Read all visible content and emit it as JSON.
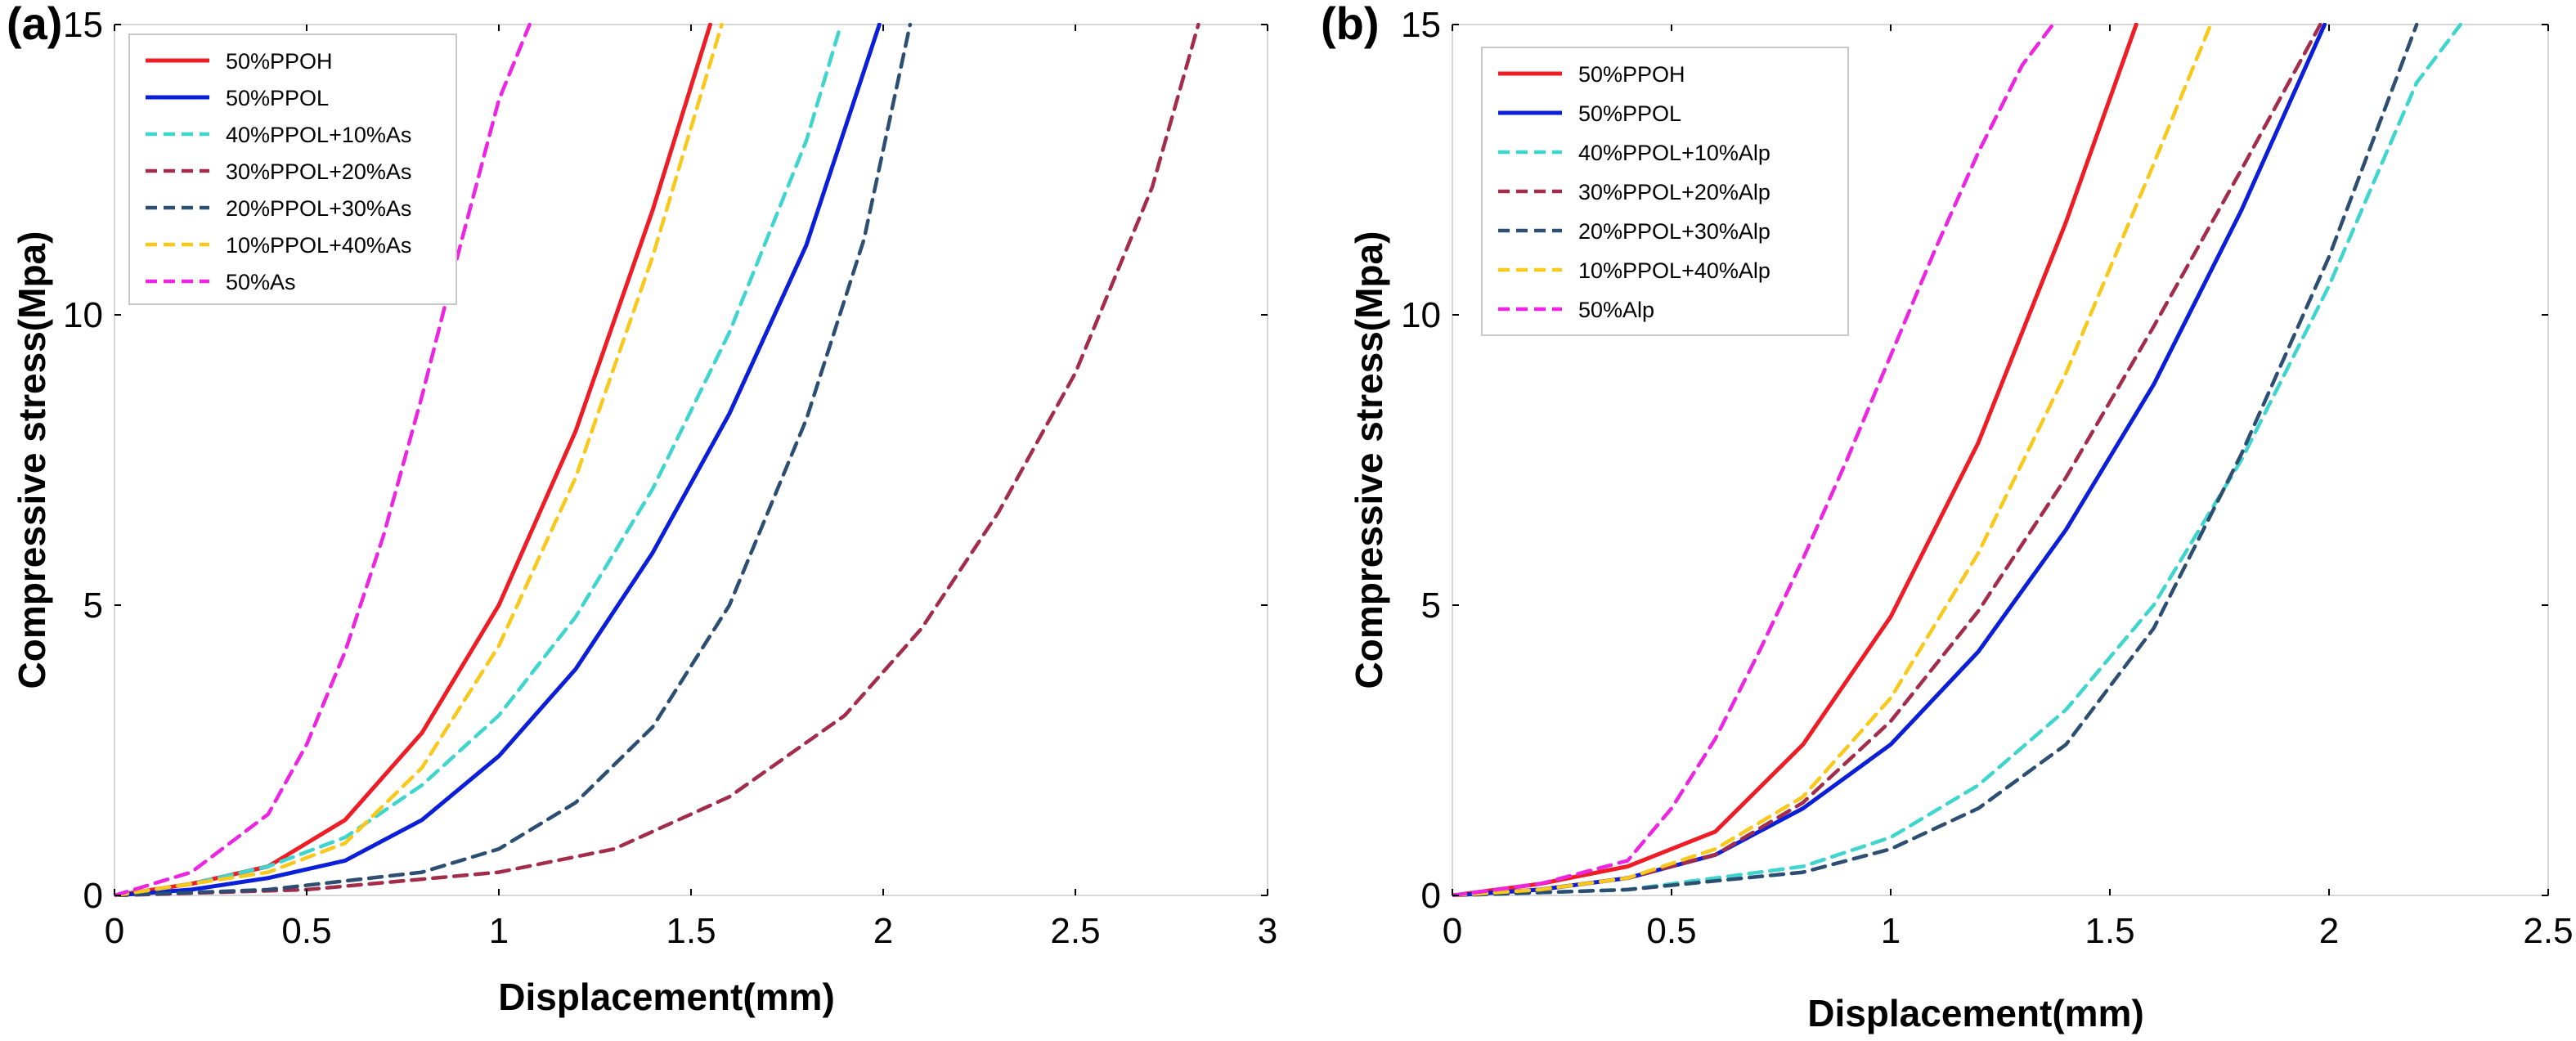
{
  "chart_data": [
    {
      "type": "line",
      "panel_label": "(a)",
      "xlabel": "Displacement(mm)",
      "ylabel": "Compressive stress(Mpa)",
      "xlim": [
        0,
        3
      ],
      "ylim": [
        0,
        15
      ],
      "xticks": [
        "0",
        "0.5",
        "1",
        "1.5",
        "2",
        "2.5",
        "3"
      ],
      "yticks": [
        "0",
        "5",
        "10",
        "15"
      ],
      "grid": false,
      "legend_position": "top-left",
      "series": [
        {
          "name": "50%PPOH",
          "color": "#ee1c25",
          "style": "solid",
          "points": [
            [
              0,
              0
            ],
            [
              0.2,
              0.2
            ],
            [
              0.4,
              0.5
            ],
            [
              0.6,
              1.3
            ],
            [
              0.8,
              2.8
            ],
            [
              1.0,
              5.0
            ],
            [
              1.2,
              8.0
            ],
            [
              1.4,
              11.8
            ],
            [
              1.55,
              15.0
            ]
          ]
        },
        {
          "name": "50%PPOL",
          "color": "#0b1ed8",
          "style": "solid",
          "points": [
            [
              0,
              0
            ],
            [
              0.2,
              0.1
            ],
            [
              0.4,
              0.3
            ],
            [
              0.6,
              0.6
            ],
            [
              0.8,
              1.3
            ],
            [
              1.0,
              2.4
            ],
            [
              1.2,
              3.9
            ],
            [
              1.4,
              5.9
            ],
            [
              1.6,
              8.3
            ],
            [
              1.8,
              11.2
            ],
            [
              1.99,
              15.0
            ]
          ]
        },
        {
          "name": "40%PPOL+10%As",
          "color": "#3fd5cf",
          "style": "dashed",
          "points": [
            [
              0,
              0
            ],
            [
              0.2,
              0.2
            ],
            [
              0.4,
              0.5
            ],
            [
              0.6,
              1.0
            ],
            [
              0.8,
              1.9
            ],
            [
              1.0,
              3.1
            ],
            [
              1.2,
              4.8
            ],
            [
              1.4,
              7.0
            ],
            [
              1.6,
              9.7
            ],
            [
              1.8,
              13.0
            ],
            [
              1.89,
              15.0
            ]
          ]
        },
        {
          "name": "30%PPOL+20%As",
          "color": "#a32c4a",
          "style": "dashed",
          "points": [
            [
              0,
              0
            ],
            [
              0.5,
              0.1
            ],
            [
              1.0,
              0.4
            ],
            [
              1.3,
              0.8
            ],
            [
              1.6,
              1.7
            ],
            [
              1.9,
              3.1
            ],
            [
              2.1,
              4.6
            ],
            [
              2.3,
              6.6
            ],
            [
              2.5,
              9.0
            ],
            [
              2.7,
              12.2
            ],
            [
              2.82,
              15.0
            ]
          ]
        },
        {
          "name": "20%PPOL+30%As",
          "color": "#2b4e72",
          "style": "dashed",
          "points": [
            [
              0,
              0
            ],
            [
              0.4,
              0.1
            ],
            [
              0.8,
              0.4
            ],
            [
              1.0,
              0.8
            ],
            [
              1.2,
              1.6
            ],
            [
              1.4,
              2.9
            ],
            [
              1.6,
              5.0
            ],
            [
              1.8,
              8.2
            ],
            [
              1.95,
              11.3
            ],
            [
              2.07,
              15.0
            ]
          ]
        },
        {
          "name": "10%PPOL+40%As",
          "color": "#f8c81b",
          "style": "dashed",
          "points": [
            [
              0,
              0
            ],
            [
              0.2,
              0.2
            ],
            [
              0.4,
              0.4
            ],
            [
              0.6,
              0.9
            ],
            [
              0.8,
              2.2
            ],
            [
              1.0,
              4.3
            ],
            [
              1.2,
              7.2
            ],
            [
              1.4,
              11.0
            ],
            [
              1.58,
              15.0
            ]
          ]
        },
        {
          "name": "50%As",
          "color": "#ee24e3",
          "style": "dashed",
          "points": [
            [
              0,
              0
            ],
            [
              0.2,
              0.4
            ],
            [
              0.4,
              1.4
            ],
            [
              0.5,
              2.6
            ],
            [
              0.6,
              4.2
            ],
            [
              0.7,
              6.2
            ],
            [
              0.8,
              8.6
            ],
            [
              0.9,
              11.2
            ],
            [
              1.0,
              13.7
            ],
            [
              1.08,
              15.0
            ]
          ]
        }
      ]
    },
    {
      "type": "line",
      "panel_label": "(b)",
      "xlabel": "Displacement(mm)",
      "ylabel": "Compressive stress(Mpa)",
      "xlim": [
        0,
        2.5
      ],
      "ylim": [
        0,
        15
      ],
      "xticks": [
        "0",
        "0.5",
        "1",
        "1.5",
        "2",
        "2.5"
      ],
      "yticks": [
        "0",
        "5",
        "10",
        "15"
      ],
      "grid": false,
      "legend_position": "top-left",
      "series": [
        {
          "name": "50%PPOH",
          "color": "#ee1c25",
          "style": "solid",
          "points": [
            [
              0,
              0
            ],
            [
              0.2,
              0.2
            ],
            [
              0.4,
              0.5
            ],
            [
              0.6,
              1.1
            ],
            [
              0.8,
              2.6
            ],
            [
              1.0,
              4.8
            ],
            [
              1.2,
              7.8
            ],
            [
              1.4,
              11.6
            ],
            [
              1.56,
              15.0
            ]
          ]
        },
        {
          "name": "50%PPOL",
          "color": "#0b1ed8",
          "style": "solid",
          "points": [
            [
              0,
              0
            ],
            [
              0.2,
              0.1
            ],
            [
              0.4,
              0.3
            ],
            [
              0.6,
              0.7
            ],
            [
              0.8,
              1.5
            ],
            [
              1.0,
              2.6
            ],
            [
              1.2,
              4.2
            ],
            [
              1.4,
              6.3
            ],
            [
              1.6,
              8.8
            ],
            [
              1.8,
              11.8
            ],
            [
              1.99,
              15.0
            ]
          ]
        },
        {
          "name": "40%PPOL+10%Alp",
          "color": "#3fd5cf",
          "style": "dashed",
          "points": [
            [
              0,
              0
            ],
            [
              0.4,
              0.1
            ],
            [
              0.8,
              0.5
            ],
            [
              1.0,
              1.0
            ],
            [
              1.2,
              1.9
            ],
            [
              1.4,
              3.2
            ],
            [
              1.6,
              5.0
            ],
            [
              1.8,
              7.5
            ],
            [
              2.0,
              10.5
            ],
            [
              2.2,
              14.0
            ],
            [
              2.3,
              15.0
            ]
          ]
        },
        {
          "name": "30%PPOL+20%Alp",
          "color": "#a32c4a",
          "style": "dashed",
          "points": [
            [
              0,
              0
            ],
            [
              0.2,
              0.1
            ],
            [
              0.4,
              0.3
            ],
            [
              0.6,
              0.7
            ],
            [
              0.8,
              1.6
            ],
            [
              1.0,
              3.0
            ],
            [
              1.2,
              4.9
            ],
            [
              1.4,
              7.2
            ],
            [
              1.6,
              9.8
            ],
            [
              1.8,
              12.5
            ],
            [
              1.98,
              15.0
            ]
          ]
        },
        {
          "name": "20%PPOL+30%Alp",
          "color": "#2b4e72",
          "style": "dashed",
          "points": [
            [
              0,
              0
            ],
            [
              0.4,
              0.1
            ],
            [
              0.8,
              0.4
            ],
            [
              1.0,
              0.8
            ],
            [
              1.2,
              1.5
            ],
            [
              1.4,
              2.6
            ],
            [
              1.6,
              4.6
            ],
            [
              1.8,
              7.6
            ],
            [
              2.0,
              11.0
            ],
            [
              2.2,
              15.0
            ]
          ]
        },
        {
          "name": "10%PPOL+40%Alp",
          "color": "#f8c81b",
          "style": "dashed",
          "points": [
            [
              0,
              0
            ],
            [
              0.2,
              0.1
            ],
            [
              0.4,
              0.3
            ],
            [
              0.6,
              0.8
            ],
            [
              0.8,
              1.7
            ],
            [
              1.0,
              3.4
            ],
            [
              1.2,
              5.9
            ],
            [
              1.4,
              9.0
            ],
            [
              1.6,
              12.6
            ],
            [
              1.73,
              15.0
            ]
          ]
        },
        {
          "name": "50%Alp",
          "color": "#ee24e3",
          "style": "dashed",
          "points": [
            [
              0,
              0
            ],
            [
              0.2,
              0.2
            ],
            [
              0.4,
              0.6
            ],
            [
              0.5,
              1.5
            ],
            [
              0.6,
              2.7
            ],
            [
              0.7,
              4.2
            ],
            [
              0.8,
              5.8
            ],
            [
              0.9,
              7.5
            ],
            [
              1.0,
              9.3
            ],
            [
              1.1,
              11.1
            ],
            [
              1.2,
              12.8
            ],
            [
              1.3,
              14.3
            ],
            [
              1.37,
              15.0
            ]
          ]
        }
      ]
    }
  ]
}
